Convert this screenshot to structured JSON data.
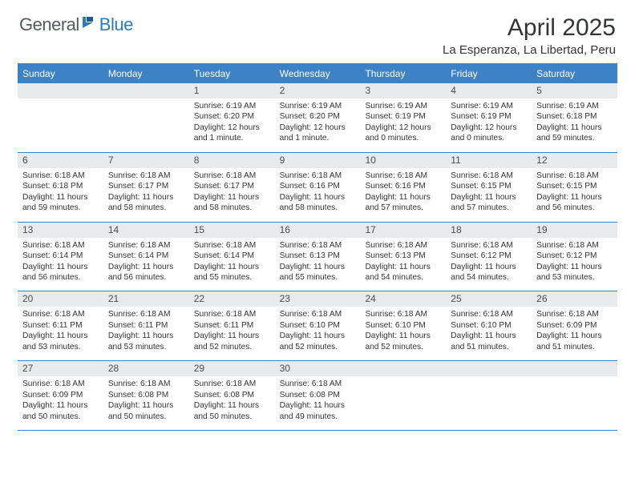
{
  "logo": {
    "general": "General",
    "blue": "Blue"
  },
  "title": "April 2025",
  "location": "La Esperanza, La Libertad, Peru",
  "colors": {
    "header_bar": "#3c82c4",
    "daynum_bg": "#e9eaec",
    "text_body": "#333436",
    "logo_gray": "#555a5f",
    "logo_blue": "#2b7bbf",
    "title_color": "#333537"
  },
  "dow": [
    "Sunday",
    "Monday",
    "Tuesday",
    "Wednesday",
    "Thursday",
    "Friday",
    "Saturday"
  ],
  "weeks": [
    [
      {
        "empty": true
      },
      {
        "empty": true
      },
      {
        "num": "1",
        "sunrise": "Sunrise: 6:19 AM",
        "sunset": "Sunset: 6:20 PM",
        "daylight1": "Daylight: 12 hours",
        "daylight2": "and 1 minute."
      },
      {
        "num": "2",
        "sunrise": "Sunrise: 6:19 AM",
        "sunset": "Sunset: 6:20 PM",
        "daylight1": "Daylight: 12 hours",
        "daylight2": "and 1 minute."
      },
      {
        "num": "3",
        "sunrise": "Sunrise: 6:19 AM",
        "sunset": "Sunset: 6:19 PM",
        "daylight1": "Daylight: 12 hours",
        "daylight2": "and 0 minutes."
      },
      {
        "num": "4",
        "sunrise": "Sunrise: 6:19 AM",
        "sunset": "Sunset: 6:19 PM",
        "daylight1": "Daylight: 12 hours",
        "daylight2": "and 0 minutes."
      },
      {
        "num": "5",
        "sunrise": "Sunrise: 6:19 AM",
        "sunset": "Sunset: 6:18 PM",
        "daylight1": "Daylight: 11 hours",
        "daylight2": "and 59 minutes."
      }
    ],
    [
      {
        "num": "6",
        "sunrise": "Sunrise: 6:18 AM",
        "sunset": "Sunset: 6:18 PM",
        "daylight1": "Daylight: 11 hours",
        "daylight2": "and 59 minutes."
      },
      {
        "num": "7",
        "sunrise": "Sunrise: 6:18 AM",
        "sunset": "Sunset: 6:17 PM",
        "daylight1": "Daylight: 11 hours",
        "daylight2": "and 58 minutes."
      },
      {
        "num": "8",
        "sunrise": "Sunrise: 6:18 AM",
        "sunset": "Sunset: 6:17 PM",
        "daylight1": "Daylight: 11 hours",
        "daylight2": "and 58 minutes."
      },
      {
        "num": "9",
        "sunrise": "Sunrise: 6:18 AM",
        "sunset": "Sunset: 6:16 PM",
        "daylight1": "Daylight: 11 hours",
        "daylight2": "and 58 minutes."
      },
      {
        "num": "10",
        "sunrise": "Sunrise: 6:18 AM",
        "sunset": "Sunset: 6:16 PM",
        "daylight1": "Daylight: 11 hours",
        "daylight2": "and 57 minutes."
      },
      {
        "num": "11",
        "sunrise": "Sunrise: 6:18 AM",
        "sunset": "Sunset: 6:15 PM",
        "daylight1": "Daylight: 11 hours",
        "daylight2": "and 57 minutes."
      },
      {
        "num": "12",
        "sunrise": "Sunrise: 6:18 AM",
        "sunset": "Sunset: 6:15 PM",
        "daylight1": "Daylight: 11 hours",
        "daylight2": "and 56 minutes."
      }
    ],
    [
      {
        "num": "13",
        "sunrise": "Sunrise: 6:18 AM",
        "sunset": "Sunset: 6:14 PM",
        "daylight1": "Daylight: 11 hours",
        "daylight2": "and 56 minutes."
      },
      {
        "num": "14",
        "sunrise": "Sunrise: 6:18 AM",
        "sunset": "Sunset: 6:14 PM",
        "daylight1": "Daylight: 11 hours",
        "daylight2": "and 56 minutes."
      },
      {
        "num": "15",
        "sunrise": "Sunrise: 6:18 AM",
        "sunset": "Sunset: 6:14 PM",
        "daylight1": "Daylight: 11 hours",
        "daylight2": "and 55 minutes."
      },
      {
        "num": "16",
        "sunrise": "Sunrise: 6:18 AM",
        "sunset": "Sunset: 6:13 PM",
        "daylight1": "Daylight: 11 hours",
        "daylight2": "and 55 minutes."
      },
      {
        "num": "17",
        "sunrise": "Sunrise: 6:18 AM",
        "sunset": "Sunset: 6:13 PM",
        "daylight1": "Daylight: 11 hours",
        "daylight2": "and 54 minutes."
      },
      {
        "num": "18",
        "sunrise": "Sunrise: 6:18 AM",
        "sunset": "Sunset: 6:12 PM",
        "daylight1": "Daylight: 11 hours",
        "daylight2": "and 54 minutes."
      },
      {
        "num": "19",
        "sunrise": "Sunrise: 6:18 AM",
        "sunset": "Sunset: 6:12 PM",
        "daylight1": "Daylight: 11 hours",
        "daylight2": "and 53 minutes."
      }
    ],
    [
      {
        "num": "20",
        "sunrise": "Sunrise: 6:18 AM",
        "sunset": "Sunset: 6:11 PM",
        "daylight1": "Daylight: 11 hours",
        "daylight2": "and 53 minutes."
      },
      {
        "num": "21",
        "sunrise": "Sunrise: 6:18 AM",
        "sunset": "Sunset: 6:11 PM",
        "daylight1": "Daylight: 11 hours",
        "daylight2": "and 53 minutes."
      },
      {
        "num": "22",
        "sunrise": "Sunrise: 6:18 AM",
        "sunset": "Sunset: 6:11 PM",
        "daylight1": "Daylight: 11 hours",
        "daylight2": "and 52 minutes."
      },
      {
        "num": "23",
        "sunrise": "Sunrise: 6:18 AM",
        "sunset": "Sunset: 6:10 PM",
        "daylight1": "Daylight: 11 hours",
        "daylight2": "and 52 minutes."
      },
      {
        "num": "24",
        "sunrise": "Sunrise: 6:18 AM",
        "sunset": "Sunset: 6:10 PM",
        "daylight1": "Daylight: 11 hours",
        "daylight2": "and 52 minutes."
      },
      {
        "num": "25",
        "sunrise": "Sunrise: 6:18 AM",
        "sunset": "Sunset: 6:10 PM",
        "daylight1": "Daylight: 11 hours",
        "daylight2": "and 51 minutes."
      },
      {
        "num": "26",
        "sunrise": "Sunrise: 6:18 AM",
        "sunset": "Sunset: 6:09 PM",
        "daylight1": "Daylight: 11 hours",
        "daylight2": "and 51 minutes."
      }
    ],
    [
      {
        "num": "27",
        "sunrise": "Sunrise: 6:18 AM",
        "sunset": "Sunset: 6:09 PM",
        "daylight1": "Daylight: 11 hours",
        "daylight2": "and 50 minutes."
      },
      {
        "num": "28",
        "sunrise": "Sunrise: 6:18 AM",
        "sunset": "Sunset: 6:08 PM",
        "daylight1": "Daylight: 11 hours",
        "daylight2": "and 50 minutes."
      },
      {
        "num": "29",
        "sunrise": "Sunrise: 6:18 AM",
        "sunset": "Sunset: 6:08 PM",
        "daylight1": "Daylight: 11 hours",
        "daylight2": "and 50 minutes."
      },
      {
        "num": "30",
        "sunrise": "Sunrise: 6:18 AM",
        "sunset": "Sunset: 6:08 PM",
        "daylight1": "Daylight: 11 hours",
        "daylight2": "and 49 minutes."
      },
      {
        "empty": true
      },
      {
        "empty": true
      },
      {
        "empty": true
      }
    ]
  ]
}
